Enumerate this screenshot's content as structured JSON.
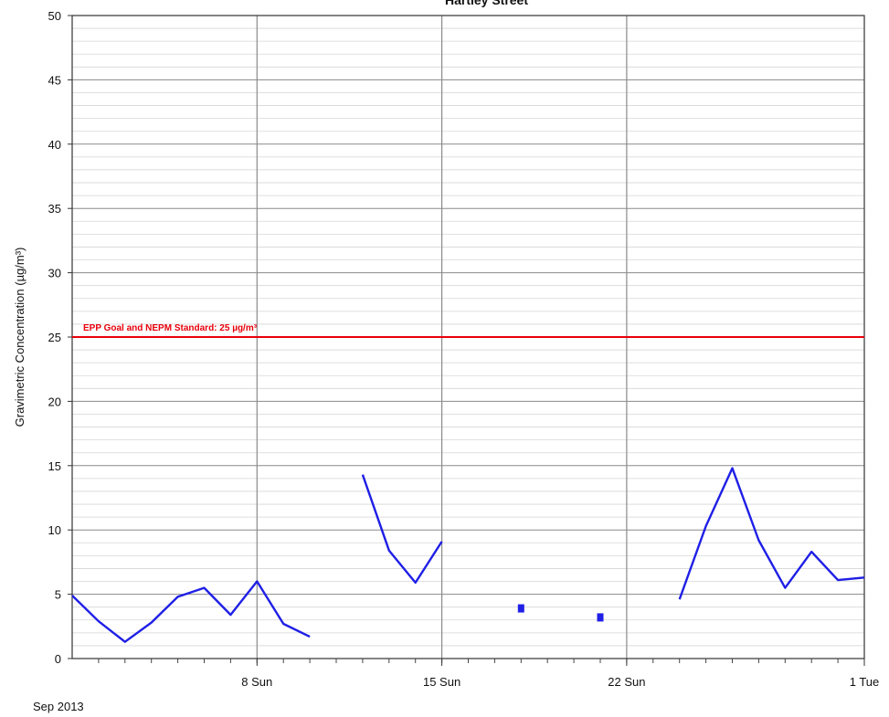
{
  "chart_data": {
    "type": "line",
    "title": "Hartley Street",
    "ylabel": "Gravimetric Concentration (µg/m³)",
    "xlabel": "",
    "x_subtitle": "Sep 2013",
    "ylim": [
      0,
      50
    ],
    "y_ticks": [
      0,
      5,
      10,
      15,
      20,
      25,
      30,
      35,
      40,
      45,
      50
    ],
    "y_tick_labels": [
      "0",
      "5",
      "10",
      "15",
      "20",
      "25",
      "30",
      "35",
      "40",
      "45",
      "50"
    ],
    "xlim": [
      "2013-09-01",
      "2013-10-01"
    ],
    "x_major_ticks": [
      {
        "date": "2013-09-08",
        "label": "8 Sun"
      },
      {
        "date": "2013-09-15",
        "label": "15 Sun"
      },
      {
        "date": "2013-09-22",
        "label": "22 Sun"
      },
      {
        "date": "2013-10-01",
        "label": "1 Tue"
      }
    ],
    "grid": true,
    "reference_line": {
      "y": 25,
      "label": "EPP Goal and NEPM Standard: 25 µg/m³",
      "color": "#e8000b"
    },
    "series": [
      {
        "color": "#1f1fe6",
        "segments": [
          {
            "x": [
              "2013-09-01",
              "2013-09-02",
              "2013-09-03",
              "2013-09-04",
              "2013-09-05",
              "2013-09-06",
              "2013-09-07",
              "2013-09-08",
              "2013-09-09",
              "2013-09-10"
            ],
            "y": [
              4.9,
              2.9,
              1.3,
              2.8,
              4.8,
              5.5,
              3.4,
              6.0,
              2.7,
              1.7
            ]
          },
          {
            "x": [
              "2013-09-12",
              "2013-09-13",
              "2013-09-14",
              "2013-09-15"
            ],
            "y": [
              14.3,
              8.4,
              5.9,
              9.1
            ]
          },
          {
            "x": [
              "2013-09-18"
            ],
            "y": [
              3.9
            ]
          },
          {
            "x": [
              "2013-09-21"
            ],
            "y": [
              3.2
            ]
          },
          {
            "x": [
              "2013-09-24",
              "2013-09-25",
              "2013-09-26",
              "2013-09-27",
              "2013-09-28",
              "2013-09-29",
              "2013-09-30",
              "2013-10-01"
            ],
            "y": [
              4.6,
              10.3,
              14.8,
              9.2,
              5.5,
              8.3,
              6.1,
              6.3
            ]
          }
        ]
      }
    ]
  }
}
